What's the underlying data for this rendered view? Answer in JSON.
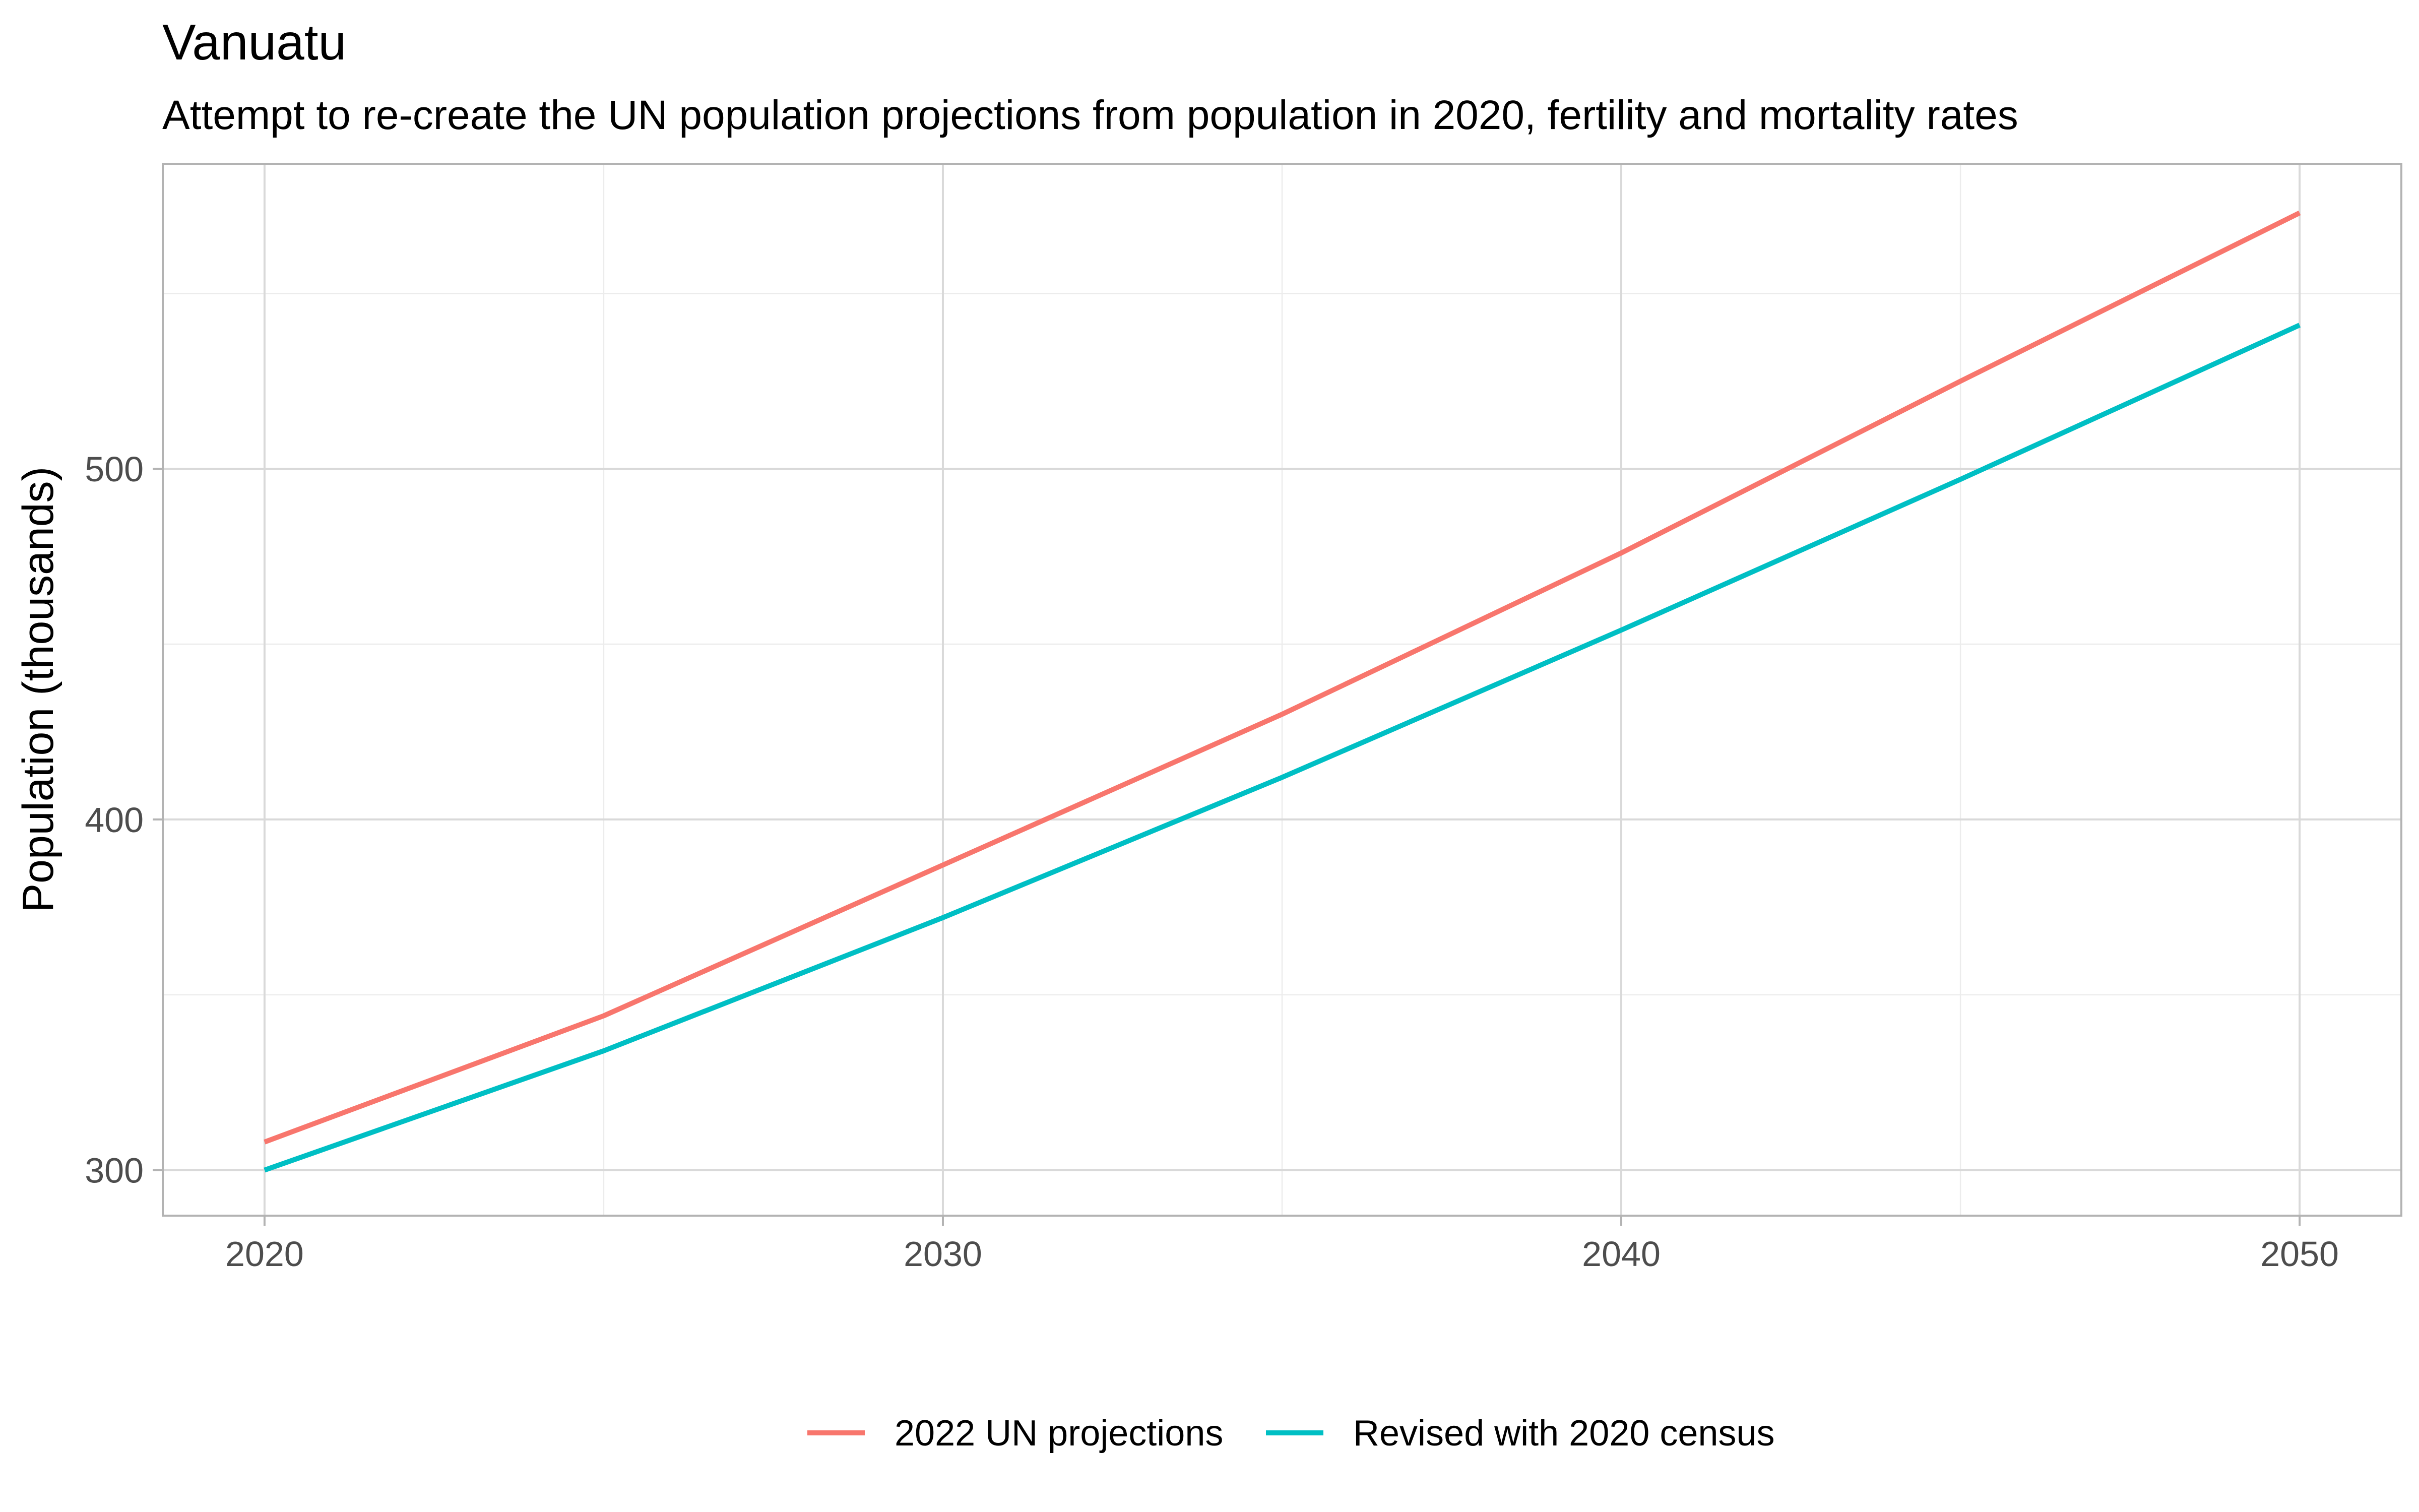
{
  "chart_data": {
    "type": "line",
    "title": "Vanuatu",
    "subtitle": "Attempt to re-create the UN population projections from population in 2020, fertility and mortality rates",
    "xlabel": "",
    "ylabel": "Population (thousands)",
    "x_ticks": [
      2020,
      2030,
      2040,
      2050
    ],
    "y_ticks": [
      300,
      400,
      500
    ],
    "xlim": [
      2018.5,
      2051.5
    ],
    "ylim": [
      287,
      587
    ],
    "grid": true,
    "legend_position": "bottom",
    "series": [
      {
        "name": "2022 UN projections",
        "color": "#F8766D",
        "x": [
          2020,
          2025,
          2030,
          2035,
          2040,
          2045,
          2050
        ],
        "y": [
          308,
          344,
          387,
          430,
          476,
          525,
          573
        ]
      },
      {
        "name": "Revised with 2020 census",
        "color": "#00BFC4",
        "x": [
          2020,
          2025,
          2030,
          2035,
          2040,
          2045,
          2050
        ],
        "y": [
          300,
          334,
          372,
          412,
          454,
          497,
          541
        ]
      }
    ]
  }
}
